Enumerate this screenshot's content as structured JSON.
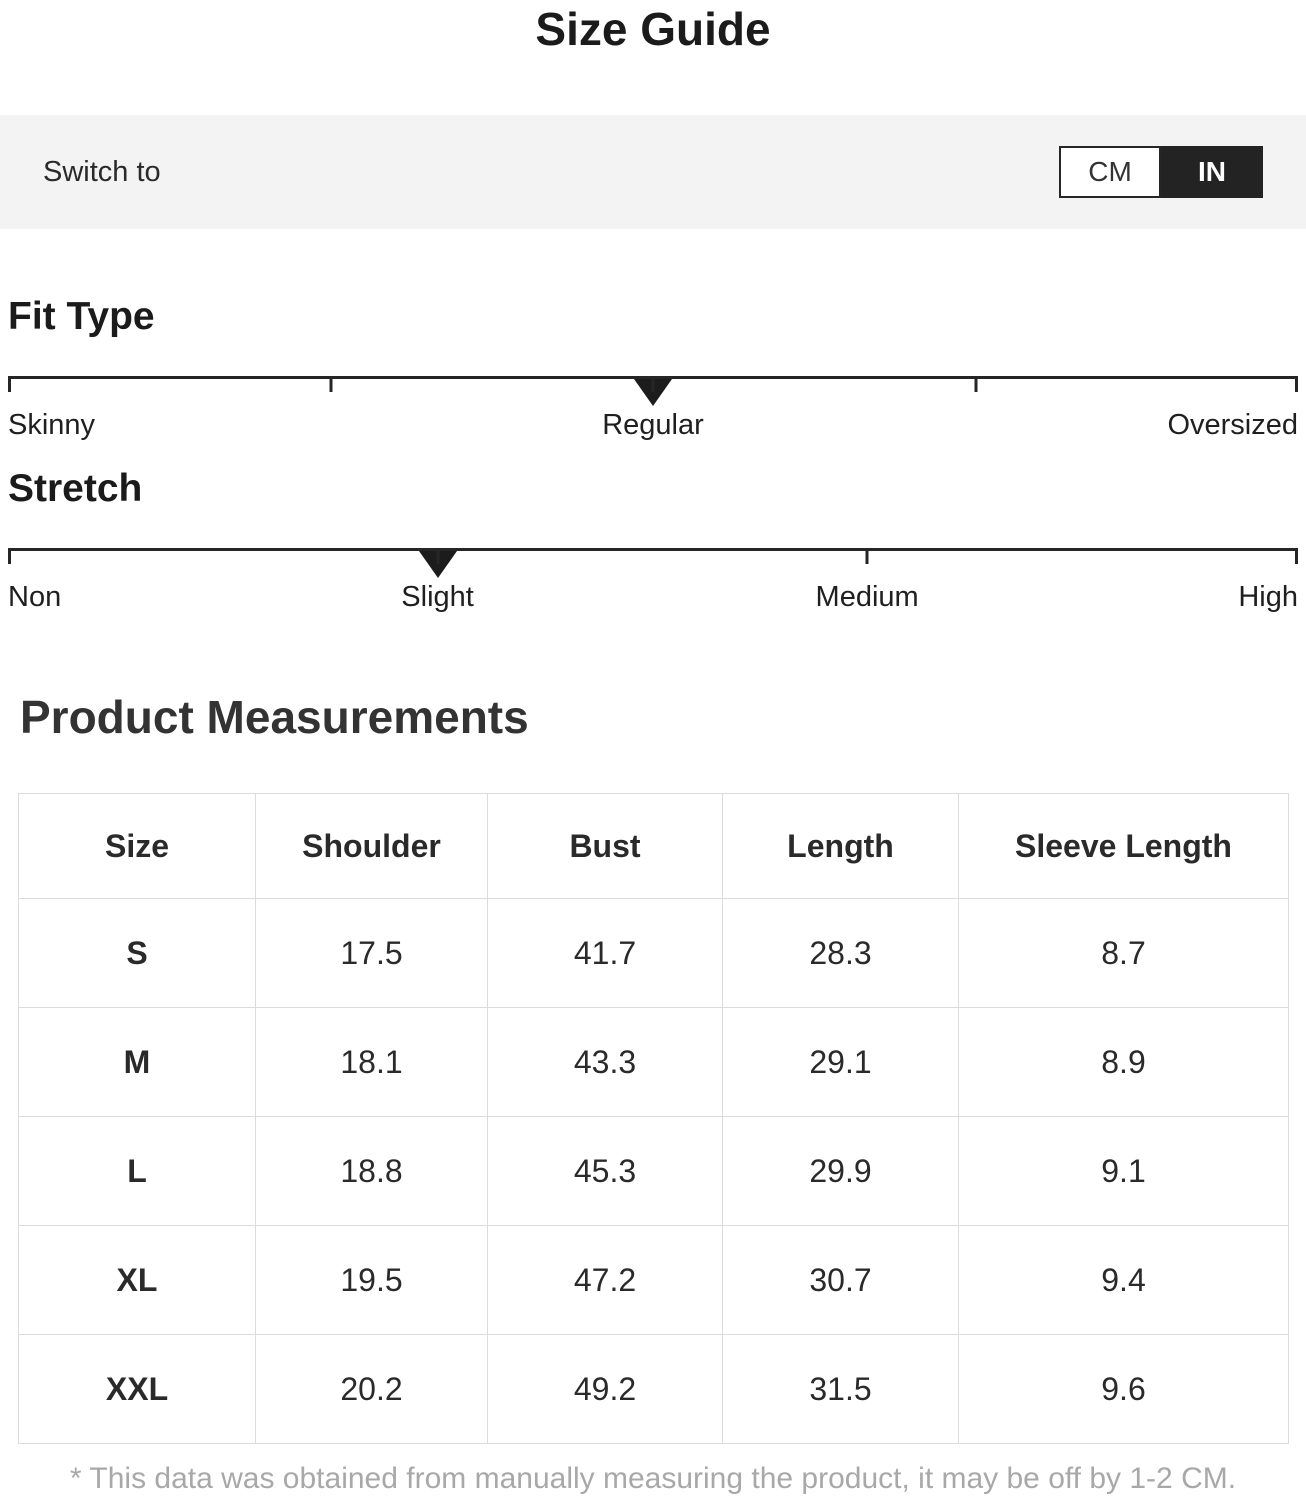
{
  "title": "Size Guide",
  "unit_bar": {
    "label": "Switch to",
    "options": {
      "cm": "CM",
      "in": "IN"
    },
    "selected": "IN"
  },
  "scales": [
    {
      "heading": "Fit Type",
      "ticks_pct": [
        0,
        25,
        50,
        75,
        100
      ],
      "marker_pct": 50,
      "marker_value": "Regular",
      "labels": [
        {
          "text": "Skinny",
          "pct": 0
        },
        {
          "text": "Regular",
          "pct": 50
        },
        {
          "text": "Oversized",
          "pct": 100
        }
      ]
    },
    {
      "heading": "Stretch",
      "ticks_pct": [
        0,
        33.3,
        66.6,
        100
      ],
      "marker_pct": 33.3,
      "marker_value": "Slight",
      "labels": [
        {
          "text": "Non",
          "pct": 0
        },
        {
          "text": "Slight",
          "pct": 33.3
        },
        {
          "text": "Medium",
          "pct": 66.6
        },
        {
          "text": "High",
          "pct": 100
        }
      ]
    }
  ],
  "measurements": {
    "heading": "Product Measurements",
    "unit": "IN",
    "columns": [
      "Size",
      "Shoulder",
      "Bust",
      "Length",
      "Sleeve Length"
    ],
    "rows": [
      {
        "size": "S",
        "values": [
          "17.5",
          "41.7",
          "28.3",
          "8.7"
        ]
      },
      {
        "size": "M",
        "values": [
          "18.1",
          "43.3",
          "29.1",
          "8.9"
        ]
      },
      {
        "size": "L",
        "values": [
          "18.8",
          "45.3",
          "29.9",
          "9.1"
        ]
      },
      {
        "size": "XL",
        "values": [
          "19.5",
          "47.2",
          "30.7",
          "9.4"
        ]
      },
      {
        "size": "XXL",
        "values": [
          "20.2",
          "49.2",
          "31.5",
          "9.6"
        ]
      }
    ]
  },
  "footnote": "* This data was obtained from manually measuring the product, it may be off by 1-2 CM.",
  "colors": {
    "accent_dark": "#1c1c1c",
    "bar_background": "#f3f3f3",
    "toggle_selected_bg": "#232323",
    "toggle_selected_text": "#ffffff",
    "table_border": "#dcdcdc",
    "footnote_gray": "#a8a8a8",
    "heading_gray": "#333333"
  }
}
